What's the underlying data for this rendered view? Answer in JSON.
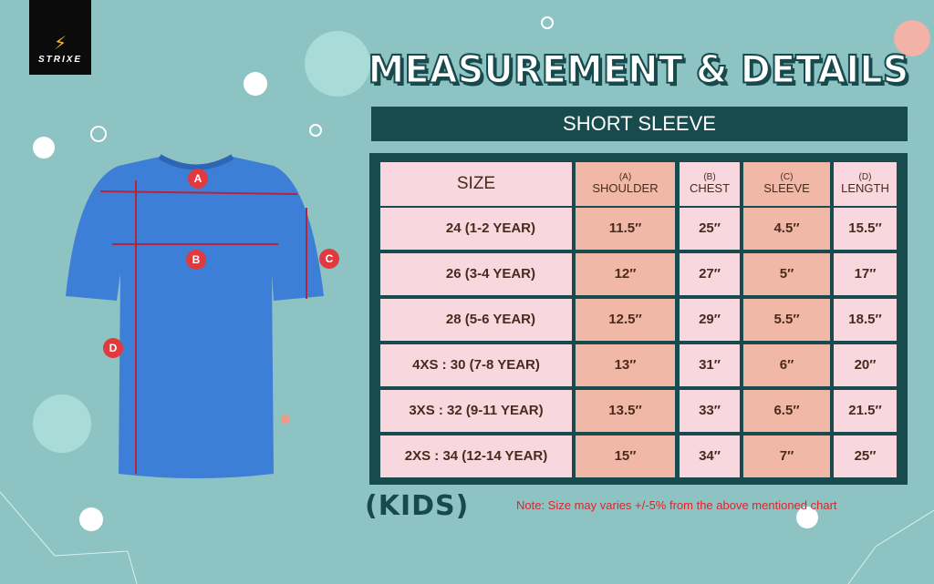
{
  "brand": {
    "logo_text": "STRIXE"
  },
  "title": "MEASUREMENT & DETAILS",
  "subtitle": "SHORT SLEEVE",
  "table": {
    "headers": [
      {
        "label": "SIZE"
      },
      {
        "code": "(A)",
        "label": "SHOULDER"
      },
      {
        "code": "(B)",
        "label": "CHEST"
      },
      {
        "code": "(C)",
        "label": "SLEEVE"
      },
      {
        "code": "(D)",
        "label": "LENGTH"
      }
    ],
    "rows": [
      [
        "24 (1-2 YEAR)",
        "11.5″",
        "25″",
        "4.5″",
        "15.5″"
      ],
      [
        "26 (3-4 YEAR)",
        "12″",
        "27″",
        "5″",
        "17″"
      ],
      [
        "28 (5-6 YEAR)",
        "12.5″",
        "29″",
        "5.5″",
        "18.5″"
      ],
      [
        "4XS : 30 (7-8 YEAR)",
        "13″",
        "31″",
        "6″",
        "20″"
      ],
      [
        "3XS : 32 (9-11 YEAR)",
        "13.5″",
        "33″",
        "6.5″",
        "21.5″"
      ],
      [
        "2XS : 34 (12-14 YEAR)",
        "15″",
        "34″",
        "7″",
        "25″"
      ]
    ]
  },
  "markers": [
    "A",
    "B",
    "C",
    "D"
  ],
  "footer": {
    "kids": "(KIDS)",
    "note": "Note: Size may varies +/-5% from the above mentioned chart"
  },
  "colors": {
    "background": "#8ec3c3",
    "dark": "#174b4d",
    "pink": "#f8d7df",
    "salmon": "#f2b8a7",
    "shirt": "#3d7fd6",
    "marker": "#e0393e"
  }
}
